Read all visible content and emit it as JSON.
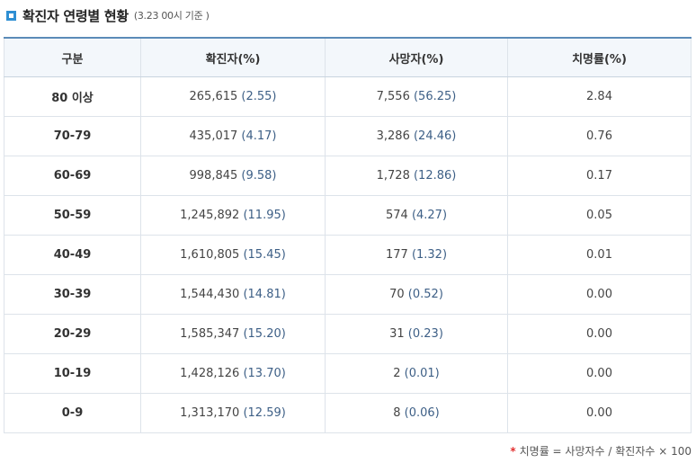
{
  "header": {
    "title": "확진자 연령별 현황",
    "subtitle": "(3.23 00시 기준 )"
  },
  "table": {
    "columns": [
      "구분",
      "확진자(%)",
      "사망자(%)",
      "치명률(%)"
    ],
    "rows": [
      {
        "age": "80 이상",
        "confirmed": "265,615",
        "confirmed_pct": "(2.55)",
        "deaths": "7,556",
        "deaths_pct": "(56.25)",
        "fatality": "2.84"
      },
      {
        "age": "70-79",
        "confirmed": "435,017",
        "confirmed_pct": "(4.17)",
        "deaths": "3,286",
        "deaths_pct": "(24.46)",
        "fatality": "0.76"
      },
      {
        "age": "60-69",
        "confirmed": "998,845",
        "confirmed_pct": "(9.58)",
        "deaths": "1,728",
        "deaths_pct": "(12.86)",
        "fatality": "0.17"
      },
      {
        "age": "50-59",
        "confirmed": "1,245,892",
        "confirmed_pct": "(11.95)",
        "deaths": "574",
        "deaths_pct": "(4.27)",
        "fatality": "0.05"
      },
      {
        "age": "40-49",
        "confirmed": "1,610,805",
        "confirmed_pct": "(15.45)",
        "deaths": "177",
        "deaths_pct": "(1.32)",
        "fatality": "0.01"
      },
      {
        "age": "30-39",
        "confirmed": "1,544,430",
        "confirmed_pct": "(14.81)",
        "deaths": "70",
        "deaths_pct": "(0.52)",
        "fatality": "0.00"
      },
      {
        "age": "20-29",
        "confirmed": "1,585,347",
        "confirmed_pct": "(15.20)",
        "deaths": "31",
        "deaths_pct": "(0.23)",
        "fatality": "0.00"
      },
      {
        "age": "10-19",
        "confirmed": "1,428,126",
        "confirmed_pct": "(13.70)",
        "deaths": "2",
        "deaths_pct": "(0.01)",
        "fatality": "0.00"
      },
      {
        "age": "0-9",
        "confirmed": "1,313,170",
        "confirmed_pct": "(12.59)",
        "deaths": "8",
        "deaths_pct": "(0.06)",
        "fatality": "0.00"
      }
    ]
  },
  "footnote": {
    "marker": "*",
    "text": "치명률 = 사망자수 / 확진자수 × 100"
  },
  "colors": {
    "accent": "#2f8fd3",
    "header_border": "#5b8bb8",
    "header_bg": "#f3f7fb",
    "percent_text": "#3d5f86",
    "footnote_marker": "#e23030"
  },
  "icons": {
    "title_marker": "square-bullet-icon"
  }
}
